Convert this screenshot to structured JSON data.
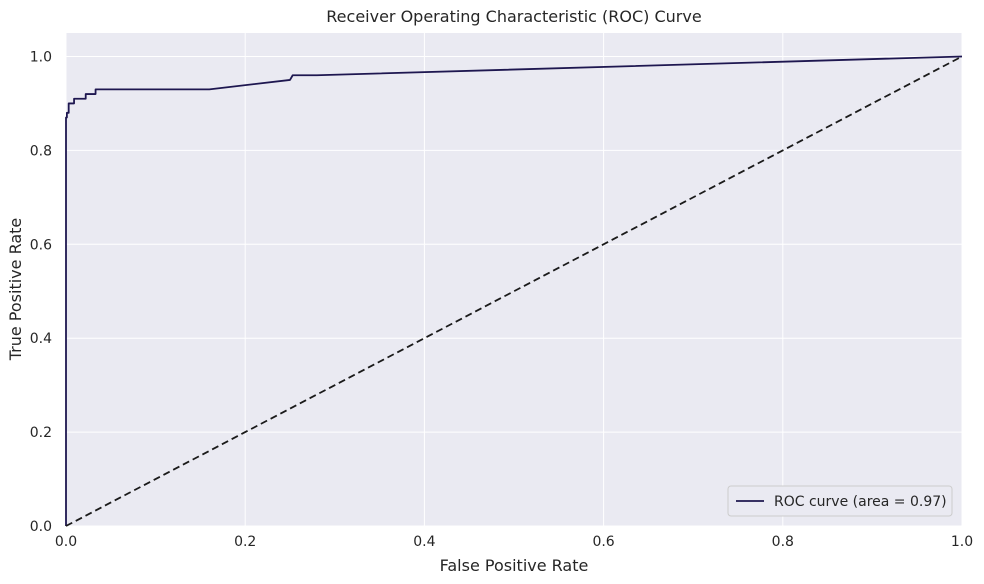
{
  "chart_data": {
    "type": "line",
    "title": "Receiver Operating Characteristic (ROC) Curve",
    "xlabel": "False Positive Rate",
    "ylabel": "True Positive Rate",
    "xlim": [
      0.0,
      1.0
    ],
    "ylim": [
      0.0,
      1.05
    ],
    "x_ticks": [
      0.0,
      0.2,
      0.4,
      0.6,
      0.8,
      1.0
    ],
    "y_ticks": [
      0.0,
      0.2,
      0.4,
      0.6,
      0.8,
      1.0
    ],
    "x_tick_labels": [
      "0.0",
      "0.2",
      "0.4",
      "0.6",
      "0.8",
      "1.0"
    ],
    "y_tick_labels": [
      "0.0",
      "0.2",
      "0.4",
      "0.6",
      "0.8",
      "1.0"
    ],
    "grid": true,
    "legend_position": "lower-right",
    "series": [
      {
        "name": "ROC curve (area = 0.97)",
        "color": "#1e1750",
        "style": "solid",
        "x": [
          0.0,
          0.0,
          0.0,
          0.001,
          0.001,
          0.003,
          0.003,
          0.004,
          0.004,
          0.009,
          0.009,
          0.022,
          0.022,
          0.033,
          0.033,
          0.16,
          0.25,
          0.253,
          0.28,
          1.0
        ],
        "y": [
          0.0,
          0.8,
          0.87,
          0.87,
          0.88,
          0.88,
          0.9,
          0.9,
          0.9,
          0.9,
          0.91,
          0.91,
          0.92,
          0.92,
          0.93,
          0.93,
          0.95,
          0.96,
          0.96,
          1.0
        ]
      },
      {
        "name": "",
        "color": "#1a1a1a",
        "style": "dashed",
        "x": [
          0.0,
          1.0
        ],
        "y": [
          0.0,
          1.0
        ]
      }
    ]
  },
  "colors": {
    "plot_background": "#eaeaf2",
    "grid": "#ffffff",
    "roc_line": "#1e1750",
    "diagonal": "#1a1a1a"
  }
}
